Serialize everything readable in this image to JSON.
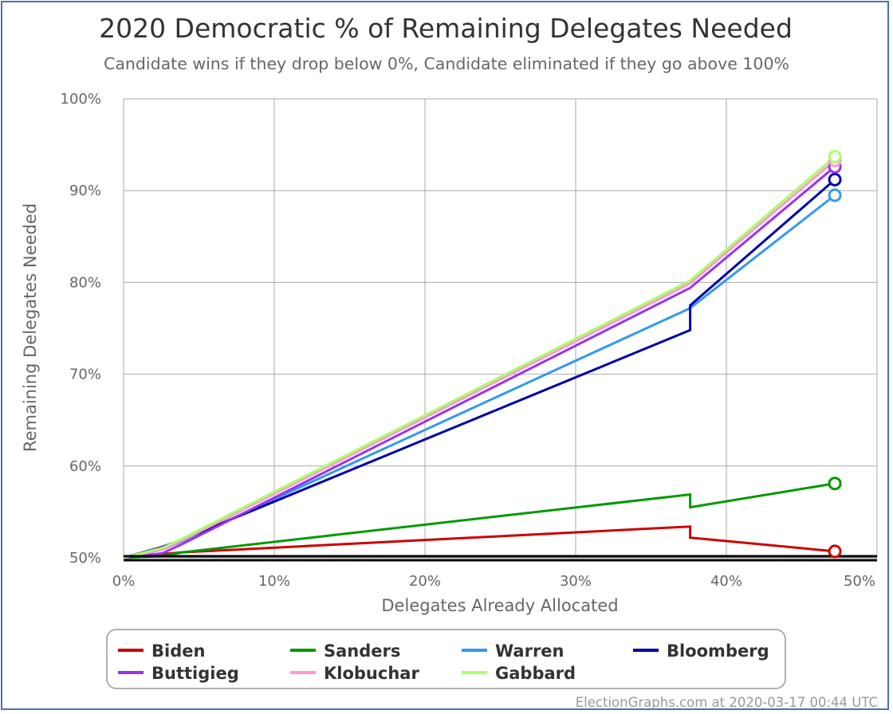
{
  "chart_data": {
    "type": "line",
    "title": "2020 Democratic % of Remaining Delegates Needed",
    "subtitle": "Candidate wins if they drop below 0%, Candidate eliminated if they go above 100%",
    "xlabel": "Delegates Already Allocated",
    "ylabel": "Remaining Delegates Needed",
    "xlim": [
      0,
      50
    ],
    "ylim": [
      50,
      100
    ],
    "x_ticks": [
      "0%",
      "10%",
      "20%",
      "30%",
      "40%",
      "50%"
    ],
    "y_ticks": [
      "50%",
      "60%",
      "70%",
      "80%",
      "90%",
      "100%"
    ],
    "grid": true,
    "legend_position": "bottom",
    "series": [
      {
        "name": "Biden",
        "color": "#cc0000",
        "points": [
          [
            0,
            50
          ],
          [
            2.6,
            50.4
          ],
          [
            3.9,
            50.6
          ],
          [
            37.6,
            53.4
          ],
          [
            37.6,
            52.2
          ],
          [
            47.2,
            50.7
          ]
        ]
      },
      {
        "name": "Sanders",
        "color": "#009900",
        "points": [
          [
            0,
            50
          ],
          [
            2.6,
            50.2
          ],
          [
            3.9,
            50.6
          ],
          [
            37.6,
            56.9
          ],
          [
            37.6,
            55.5
          ],
          [
            47.2,
            58.1
          ]
        ]
      },
      {
        "name": "Warren",
        "color": "#3399ee",
        "points": [
          [
            0,
            50
          ],
          [
            2.6,
            50.9
          ],
          [
            3.9,
            51.8
          ],
          [
            37.6,
            77.2
          ],
          [
            47.2,
            89.5
          ]
        ]
      },
      {
        "name": "Bloomberg",
        "color": "#0000aa",
        "points": [
          [
            0,
            50
          ],
          [
            2.6,
            51.2
          ],
          [
            3.9,
            52
          ],
          [
            37.6,
            74.8
          ],
          [
            37.6,
            77.5
          ],
          [
            47.2,
            91.2
          ]
        ]
      },
      {
        "name": "Buttigieg",
        "color": "#9933ee",
        "points": [
          [
            0,
            50
          ],
          [
            2.6,
            50.5
          ],
          [
            3.9,
            51.5
          ],
          [
            37.6,
            79.4
          ],
          [
            47.2,
            92.6
          ]
        ]
      },
      {
        "name": "Klobuchar",
        "color": "#ff99cc",
        "points": [
          [
            0,
            50
          ],
          [
            2.6,
            50.9
          ],
          [
            3.9,
            51.9
          ],
          [
            37.6,
            79.9
          ],
          [
            47.2,
            93.3
          ]
        ]
      },
      {
        "name": "Gabbard",
        "color": "#aaff66",
        "points": [
          [
            0,
            50
          ],
          [
            2.6,
            51.1
          ],
          [
            3.9,
            52.1
          ],
          [
            37.6,
            80.2
          ],
          [
            47.2,
            93.7
          ]
        ]
      }
    ],
    "threshold_line": 50
  },
  "credit": "ElectionGraphs.com at 2020-03-17 00:44 UTC"
}
